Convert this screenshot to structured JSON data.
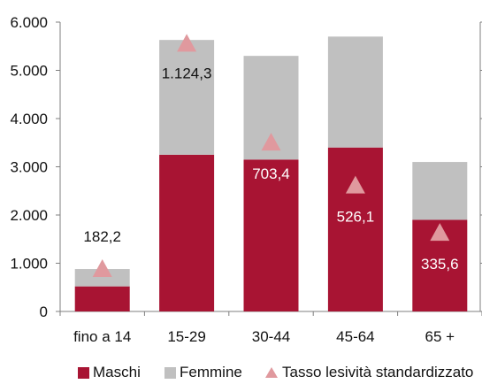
{
  "chart_data": {
    "type": "bar",
    "stacked": true,
    "categories": [
      "fino a 14",
      "15-29",
      "30-44",
      "45-64",
      "65 +"
    ],
    "series": [
      {
        "name": "Maschi",
        "color": "#a81433",
        "values": [
          520,
          3250,
          3150,
          3400,
          1900
        ]
      },
      {
        "name": "Femmine",
        "color": "#c0c0c0",
        "values": [
          360,
          2380,
          2150,
          2300,
          1200
        ]
      }
    ],
    "secondary_series": {
      "name": "Tasso lesività standardizzato",
      "marker": "triangle",
      "color": "#e0999e",
      "values": [
        182.2,
        1124.3,
        703.4,
        526.1,
        335.6
      ],
      "labels": [
        "182,2",
        "1.124,3",
        "703,4",
        "526,1",
        "335,6"
      ],
      "marker_positions_primary_units": [
        900,
        5570,
        3520,
        2630,
        1650
      ]
    },
    "ylim": [
      0,
      6000
    ],
    "yticks": [
      0,
      1000,
      2000,
      3000,
      4000,
      5000,
      6000
    ],
    "ytick_labels": [
      "0",
      "1.000",
      "2.000",
      "3.000",
      "4.000",
      "5.000",
      "6.000"
    ],
    "legend_position": "bottom",
    "grid": false
  }
}
